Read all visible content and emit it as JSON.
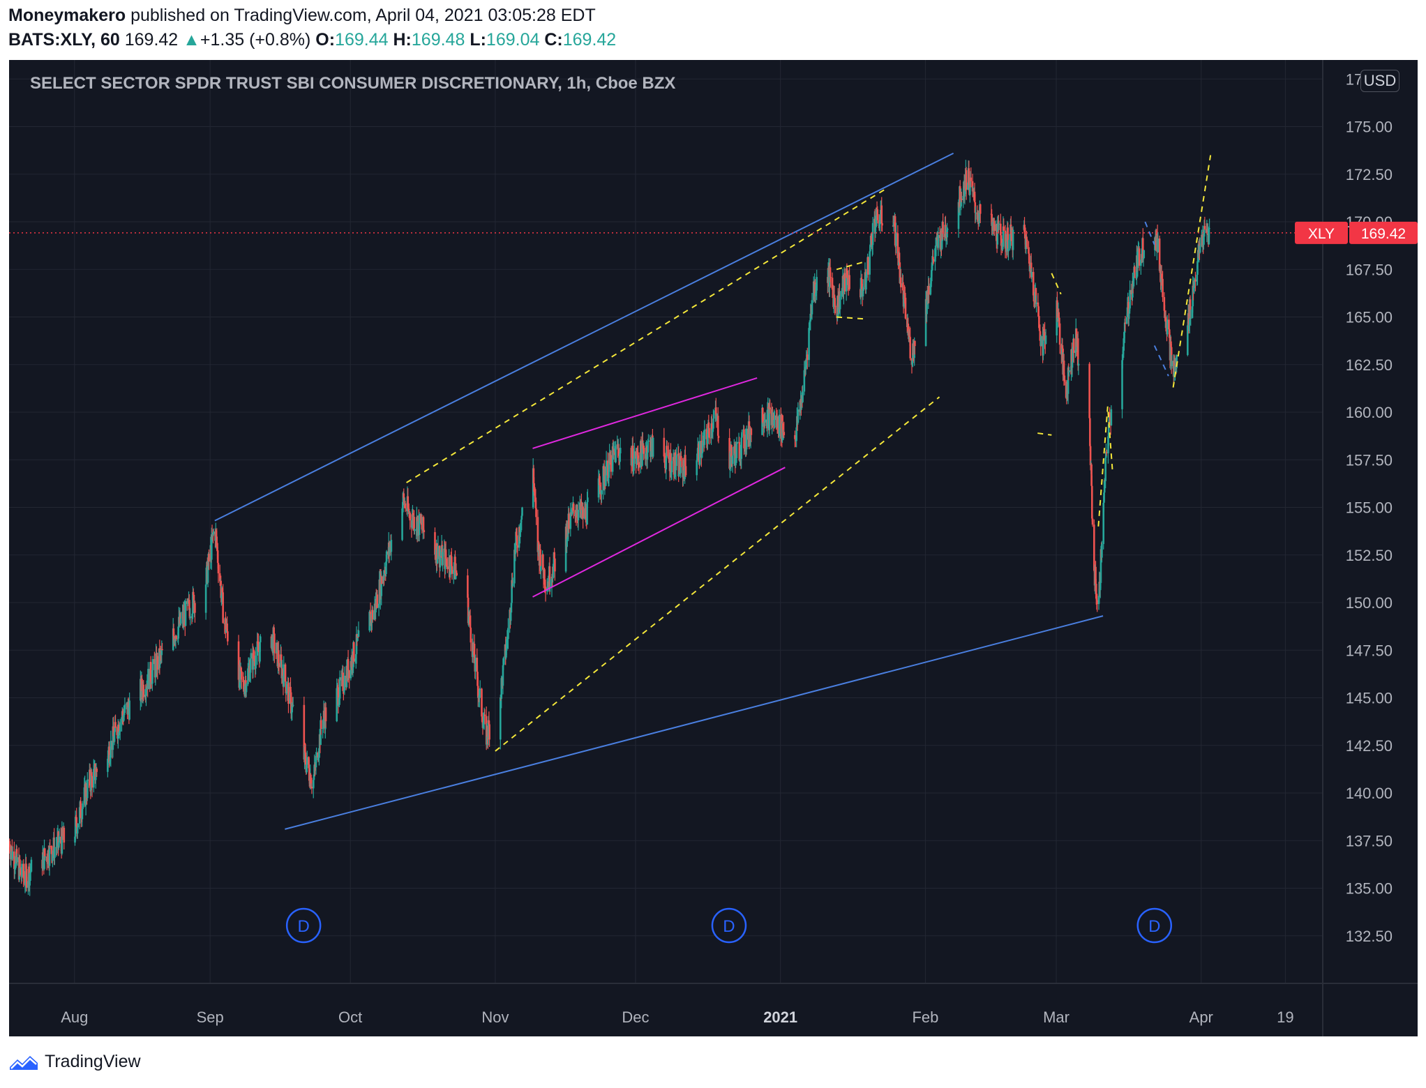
{
  "header": {
    "author": "Moneymakero",
    "published_text": " published on TradingView.com, April 04, 2021 03:05:28 EDT",
    "symbol_interval": "BATS:XLY, 60",
    "last": "169.42",
    "change_arrow": "▲",
    "change": "+1.35 (+0.8%)",
    "open_label": "O:",
    "open": "169.44",
    "high_label": "H:",
    "high": "169.48",
    "low_label": "L:",
    "low": "169.04",
    "close_label": "C:",
    "close": "169.42"
  },
  "chart": {
    "title": "SELECT SECTOR SPDR TRUST SBI CONSUMER DISCRETIONARY, 1h, Cboe BZX",
    "currency_button": "USD",
    "price_tag_symbol": "XLY",
    "price_tag_value": "169.42",
    "dividend_marker": "D",
    "colors": {
      "background": "#131722",
      "up": "#26a69a",
      "down": "#ef5350",
      "trend_blue": "#4a7fe0",
      "channel_magenta": "#e028e0",
      "dashed_yellow": "#f5e83a",
      "grid": "#232733",
      "last_price": "#f23645"
    }
  },
  "chart_data": {
    "type": "candlestick",
    "interval": "1h",
    "symbol": "BATS:XLY",
    "y_ticks": [
      132.5,
      135.0,
      137.5,
      140.0,
      142.5,
      145.0,
      147.5,
      150.0,
      152.5,
      155.0,
      157.5,
      160.0,
      162.5,
      165.0,
      167.5,
      170.0,
      172.5,
      175.0,
      177.5
    ],
    "y_tick_labels": [
      "132.50",
      "135.00",
      "137.50",
      "140.00",
      "142.50",
      "145.00",
      "147.50",
      "150.00",
      "152.50",
      "155.00",
      "157.50",
      "160.00",
      "162.50",
      "165.00",
      "167.50",
      "170.00",
      "172.50",
      "175.00",
      "177.50"
    ],
    "ylim": [
      130.0,
      178.5
    ],
    "x_range": [
      "2020-07-20",
      "2021-04-27"
    ],
    "x_ticks": [
      {
        "label": "Aug",
        "date": "2020-08-03"
      },
      {
        "label": "Sep",
        "date": "2020-09-01"
      },
      {
        "label": "Oct",
        "date": "2020-10-01"
      },
      {
        "label": "Nov",
        "date": "2020-11-01"
      },
      {
        "label": "Dec",
        "date": "2020-12-01"
      },
      {
        "label": "2021",
        "date": "2021-01-01",
        "bold": true
      },
      {
        "label": "Feb",
        "date": "2021-02-01"
      },
      {
        "label": "Mar",
        "date": "2021-03-01"
      },
      {
        "label": "Apr",
        "date": "2021-04-01"
      },
      {
        "label": "19",
        "date": "2021-04-19"
      }
    ],
    "last_price": 169.42,
    "dividends": [
      "2020-09-21",
      "2020-12-21",
      "2021-03-22"
    ],
    "price_path": [
      [
        "2020-07-20",
        137.3
      ],
      [
        "2020-07-23",
        135.5
      ],
      [
        "2020-07-27",
        136.5
      ],
      [
        "2020-07-30",
        137.2
      ],
      [
        "2020-08-03",
        138.0
      ],
      [
        "2020-08-06",
        140.5
      ],
      [
        "2020-08-10",
        142.0
      ],
      [
        "2020-08-13",
        144.0
      ],
      [
        "2020-08-17",
        145.3
      ],
      [
        "2020-08-20",
        146.5
      ],
      [
        "2020-08-24",
        148.2
      ],
      [
        "2020-08-27",
        149.5
      ],
      [
        "2020-08-31",
        151.0
      ],
      [
        "2020-09-02",
        154.0
      ],
      [
        "2020-09-04",
        149.0
      ],
      [
        "2020-09-08",
        145.5
      ],
      [
        "2020-09-10",
        147.0
      ],
      [
        "2020-09-14",
        148.3
      ],
      [
        "2020-09-17",
        146.0
      ],
      [
        "2020-09-21",
        142.0
      ],
      [
        "2020-09-23",
        140.5
      ],
      [
        "2020-09-25",
        143.8
      ],
      [
        "2020-09-29",
        145.5
      ],
      [
        "2020-10-02",
        147.5
      ],
      [
        "2020-10-06",
        149.5
      ],
      [
        "2020-10-09",
        152.5
      ],
      [
        "2020-10-12",
        155.5
      ],
      [
        "2020-10-14",
        154.5
      ],
      [
        "2020-10-16",
        154.0
      ],
      [
        "2020-10-20",
        152.5
      ],
      [
        "2020-10-23",
        152.0
      ],
      [
        "2020-10-26",
        150.0
      ],
      [
        "2020-10-28",
        146.0
      ],
      [
        "2020-10-30",
        143.0
      ],
      [
        "2020-11-02",
        145.0
      ],
      [
        "2020-11-04",
        149.0
      ],
      [
        "2020-11-05",
        152.5
      ],
      [
        "2020-11-09",
        157.5
      ],
      [
        "2020-11-10",
        153.0
      ],
      [
        "2020-11-12",
        151.0
      ],
      [
        "2020-11-16",
        153.5
      ],
      [
        "2020-11-18",
        155.0
      ],
      [
        "2020-11-20",
        154.5
      ],
      [
        "2020-11-24",
        156.5
      ],
      [
        "2020-11-27",
        158.0
      ],
      [
        "2020-12-01",
        157.5
      ],
      [
        "2020-12-04",
        158.3
      ],
      [
        "2020-12-08",
        157.5
      ],
      [
        "2020-12-11",
        157.0
      ],
      [
        "2020-12-15",
        158.0
      ],
      [
        "2020-12-18",
        159.8
      ],
      [
        "2020-12-21",
        157.5
      ],
      [
        "2020-12-23",
        158.0
      ],
      [
        "2020-12-28",
        160.0
      ],
      [
        "2020-12-31",
        159.5
      ],
      [
        "2021-01-04",
        158.5
      ],
      [
        "2021-01-06",
        161.5
      ],
      [
        "2021-01-08",
        166.5
      ],
      [
        "2021-01-11",
        167.5
      ],
      [
        "2021-01-13",
        165.5
      ],
      [
        "2021-01-15",
        167.0
      ],
      [
        "2021-01-19",
        166.5
      ],
      [
        "2021-01-21",
        170.0
      ],
      [
        "2021-01-25",
        170.5
      ],
      [
        "2021-01-27",
        166.5
      ],
      [
        "2021-01-29",
        163.0
      ],
      [
        "2021-02-01",
        165.5
      ],
      [
        "2021-02-03",
        168.5
      ],
      [
        "2021-02-05",
        169.5
      ],
      [
        "2021-02-08",
        171.0
      ],
      [
        "2021-02-10",
        172.5
      ],
      [
        "2021-02-12",
        170.5
      ],
      [
        "2021-02-16",
        169.5
      ],
      [
        "2021-02-18",
        169.0
      ],
      [
        "2021-02-22",
        169.5
      ],
      [
        "2021-02-24",
        167.0
      ],
      [
        "2021-02-26",
        163.5
      ],
      [
        "2021-03-01",
        166.0
      ],
      [
        "2021-03-03",
        161.0
      ],
      [
        "2021-03-05",
        164.0
      ],
      [
        "2021-03-08",
        160.0
      ],
      [
        "2021-03-09",
        152.0
      ],
      [
        "2021-03-10",
        149.5
      ],
      [
        "2021-03-11",
        154.5
      ],
      [
        "2021-03-12",
        159.0
      ],
      [
        "2021-03-15",
        163.0
      ],
      [
        "2021-03-17",
        166.5
      ],
      [
        "2021-03-19",
        168.5
      ],
      [
        "2021-03-22",
        169.8
      ],
      [
        "2021-03-23",
        168.0
      ],
      [
        "2021-03-24",
        166.0
      ],
      [
        "2021-03-25",
        164.0
      ],
      [
        "2021-03-26",
        162.0
      ],
      [
        "2021-03-29",
        164.5
      ],
      [
        "2021-03-31",
        167.5
      ],
      [
        "2021-04-01",
        169.0
      ],
      [
        "2021-04-02",
        169.42
      ]
    ],
    "drawings": [
      {
        "type": "trendline",
        "color": "blue",
        "from": [
          "2020-09-02",
          154.3
        ],
        "to": [
          "2021-02-07",
          173.6
        ]
      },
      {
        "type": "trendline",
        "color": "blue",
        "from": [
          "2020-09-17",
          138.1
        ],
        "to": [
          "2021-03-11",
          149.3
        ]
      },
      {
        "type": "trendline",
        "color": "magenta",
        "from": [
          "2020-11-09",
          158.1
        ],
        "to": [
          "2020-12-27",
          161.8
        ]
      },
      {
        "type": "trendline",
        "color": "magenta",
        "from": [
          "2020-11-09",
          150.3
        ],
        "to": [
          "2021-01-02",
          157.1
        ]
      },
      {
        "type": "dashed",
        "color": "yellow",
        "from": [
          "2020-10-13",
          156.3
        ],
        "to": [
          "2021-01-24",
          171.8
        ]
      },
      {
        "type": "dashed",
        "color": "yellow",
        "from": [
          "2020-11-01",
          142.2
        ],
        "to": [
          "2021-02-04",
          160.8
        ]
      },
      {
        "type": "dashed",
        "color": "yellow",
        "points": [
          [
            "2021-01-13",
            167.5
          ],
          [
            "2021-01-19",
            167.9
          ]
        ]
      },
      {
        "type": "dashed",
        "color": "yellow",
        "points": [
          [
            "2021-01-13",
            165.0
          ],
          [
            "2021-01-19",
            164.9
          ]
        ]
      },
      {
        "type": "dashed",
        "color": "yellow",
        "points": [
          [
            "2021-02-28",
            167.3
          ],
          [
            "2021-03-02",
            166.2
          ]
        ]
      },
      {
        "type": "dashed",
        "color": "yellow",
        "points": [
          [
            "2021-02-25",
            158.9
          ],
          [
            "2021-02-28",
            158.8
          ]
        ]
      },
      {
        "type": "dashed",
        "color": "yellow",
        "points": [
          [
            "2021-03-10",
            154.0
          ],
          [
            "2021-03-12",
            160.3
          ],
          [
            "2021-03-13",
            157.0
          ]
        ]
      },
      {
        "type": "dashed",
        "color": "yellow",
        "points": [
          [
            "2021-03-26",
            161.3
          ],
          [
            "2021-04-03",
            173.5
          ]
        ]
      },
      {
        "type": "dashed",
        "color": "blue",
        "points": [
          [
            "2021-03-20",
            170.0
          ],
          [
            "2021-03-22",
            168.8
          ]
        ]
      },
      {
        "type": "dashed",
        "color": "blue",
        "points": [
          [
            "2021-03-22",
            163.5
          ],
          [
            "2021-03-25",
            161.9
          ]
        ]
      }
    ]
  },
  "footer": {
    "brand": "TradingView"
  }
}
